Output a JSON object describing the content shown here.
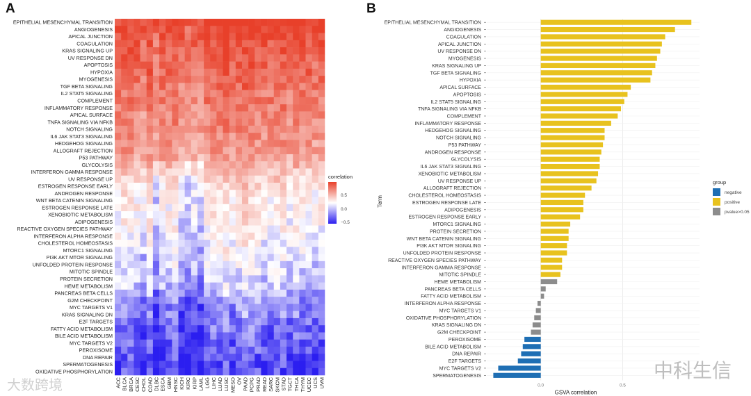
{
  "panels": {
    "a": "A",
    "b": "B"
  },
  "watermarks": [
    "大数跨境",
    "中科生信"
  ],
  "chart_data": [
    {
      "type": "heatmap",
      "title": "",
      "legend_title": "correlation",
      "legend_ticks": [
        0.5,
        0.0,
        -0.5
      ],
      "legend_tick_labels": [
        "0.5",
        "0.0",
        "−0.5"
      ],
      "color_low": "#2b1ef0",
      "color_mid": "#ffffff",
      "color_high": "#e8402a",
      "columns": [
        "ACC",
        "BLCA",
        "BRCA",
        "CESC",
        "CHOL",
        "COAD",
        "DLBC",
        "ESCA",
        "GBM",
        "HNSC",
        "KICH",
        "KIRC",
        "KIRP",
        "LAML",
        "LGG",
        "LIHC",
        "LUAD",
        "LUSC",
        "MESO",
        "OV",
        "PAAD",
        "PCPG",
        "PRAD",
        "READ",
        "SARC",
        "SKCM",
        "STAD",
        "TGCT",
        "THCA",
        "THYM",
        "UCEC",
        "UCS",
        "UVM"
      ],
      "column_offsets": [
        0.0,
        0.05,
        0.05,
        0.0,
        -0.1,
        0.05,
        -0.2,
        0.0,
        0.0,
        0.05,
        -0.15,
        -0.2,
        -0.1,
        -0.15,
        0.05,
        0.05,
        0.05,
        0.1,
        0.0,
        0.05,
        0.15,
        0.1,
        0.05,
        0.0,
        0.0,
        0.05,
        0.05,
        -0.05,
        0.05,
        0.0,
        0.0,
        -0.05,
        0.0
      ],
      "rows": [
        "EPITHELIAL MESENCHYMAL TRANSITION",
        "ANGIOGENESIS",
        "APICAL JUNCTION",
        "COAGULATION",
        "KRAS SIGNALING UP",
        "UV RESPONSE DN",
        "APOPTOSIS",
        "HYPOXIA",
        "MYOGENESIS",
        "TGF BETA SIGNALING",
        "IL2 STAT5 SIGNALING",
        "COMPLEMENT",
        "INFLAMMATORY RESPONSE",
        "APICAL SURFACE",
        "TNFA SIGNALING VIA NFKB",
        "NOTCH SIGNALING",
        "IL6 JAK STAT3 SIGNALING",
        "HEDGEHOG SIGNALING",
        "ALLOGRAFT REJECTION",
        "P53 PATHWAY",
        "GLYCOLYSIS",
        "INTERFERON GAMMA RESPONSE",
        "UV RESPONSE UP",
        "ESTROGEN RESPONSE EARLY",
        "ANDROGEN RESPONSE",
        "WNT BETA CATENIN SIGNALING",
        "ESTROGEN RESPONSE LATE",
        "XENOBIOTIC METABOLISM",
        "ADIPOGENESIS",
        "REACTIVE OXYGEN SPECIES PATHWAY",
        "INTERFERON ALPHA RESPONSE",
        "CHOLESTEROL HOMEOSTASIS",
        "MTORC1 SIGNALING",
        "PI3K AKT MTOR SIGNALING",
        "UNFOLDED PROTEIN RESPONSE",
        "MITOTIC SPINDLE",
        "PROTEIN SECRETION",
        "HEME METABOLISM",
        "PANCREAS BETA CELLS",
        "G2M CHECKPOINT",
        "MYC TARGETS V1",
        "KRAS SIGNALING DN",
        "E2F TARGETS",
        "FATTY ACID METABOLISM",
        "BILE ACID METABOLISM",
        "MYC TARGETS V2",
        "PEROXISOME",
        "DNA REPAIR",
        "SPERMATOGENESIS",
        "OXIDATIVE PHOSPHORYLATION"
      ],
      "row_means": [
        0.85,
        0.8,
        0.78,
        0.72,
        0.72,
        0.7,
        0.68,
        0.68,
        0.65,
        0.62,
        0.58,
        0.58,
        0.55,
        0.52,
        0.52,
        0.5,
        0.48,
        0.46,
        0.44,
        0.4,
        0.3,
        0.22,
        0.18,
        0.1,
        0.08,
        0.05,
        0.05,
        0.05,
        0.02,
        0.0,
        -0.02,
        -0.05,
        -0.05,
        -0.08,
        -0.1,
        -0.12,
        -0.15,
        -0.18,
        -0.22,
        -0.3,
        -0.32,
        -0.35,
        -0.38,
        -0.4,
        -0.42,
        -0.45,
        -0.45,
        -0.48,
        -0.5,
        -0.5
      ]
    },
    {
      "type": "bar",
      "orientation": "horizontal",
      "xlabel": "GSVA correlation",
      "ylabel": "Term",
      "xlim": [
        -0.33,
        0.97
      ],
      "x_ticks": [
        0.0,
        0.5
      ],
      "x_tick_labels": [
        "0.0",
        "0.5"
      ],
      "legend": {
        "title": "group",
        "placement": "right",
        "entries": [
          {
            "name": "negative",
            "color": "#1f6fb4"
          },
          {
            "name": "positive",
            "color": "#e8c21e"
          },
          {
            "name": "pvalue>0.05",
            "color": "#8c8c8c"
          }
        ]
      },
      "categories": [
        "EPITHELIAL MESENCHYMAL TRANSITION",
        "ANGIOGENESIS",
        "COAGULATION",
        "APICAL JUNCTION",
        "UV RESPONSE DN",
        "MYOGENESIS",
        "KRAS SIGNALING UP",
        "TGF BETA SIGNALING",
        "HYPOXIA",
        "APICAL SURFACE",
        "APOPTOSIS",
        "IL2 STAT5 SIGNALING",
        "TNFA SIGNALING VIA NFKB",
        "COMPLEMENT",
        "INFLAMMATORY RESPONSE",
        "HEDGEHOG SIGNALING",
        "NOTCH SIGNALING",
        "P53 PATHWAY",
        "ANDROGEN RESPONSE",
        "GLYCOLYSIS",
        "IL6 JAK STAT3 SIGNALING",
        "XENOBIOTIC METABOLISM",
        "UV RESPONSE UP",
        "ALLOGRAFT REJECTION",
        "CHOLESTEROL HOMEOSTASIS",
        "ESTROGEN RESPONSE LATE",
        "ADIPOGENESIS",
        "ESTROGEN RESPONSE EARLY",
        "MTORC1 SIGNALING",
        "PROTEIN SECRETION",
        "WNT BETA CATENIN SIGNALING",
        "PI3K AKT MTOR SIGNALING",
        "UNFOLDED PROTEIN RESPONSE",
        "REACTIVE OXYGEN SPECIES PATHWAY",
        "INTERFERON GAMMA RESPONSE",
        "MITOTIC SPINDLE",
        "HEME METABOLISM",
        "PANCREAS BETA CELLS",
        "FATTY ACID METABOLISM",
        "INTERFERON ALPHA RESPONSE",
        "MYC TARGETS V1",
        "OXIDATIVE PHOSPHORYLATION",
        "KRAS SIGNALING DN",
        "G2M CHECKPOINT",
        "PEROXISOME",
        "BILE ACID METABOLISM",
        "DNA REPAIR",
        "E2F TARGETS",
        "MYC TARGETS V2",
        "SPERMATOGENESIS"
      ],
      "values": [
        0.92,
        0.82,
        0.76,
        0.74,
        0.73,
        0.71,
        0.7,
        0.68,
        0.67,
        0.55,
        0.53,
        0.51,
        0.49,
        0.47,
        0.43,
        0.39,
        0.39,
        0.38,
        0.37,
        0.36,
        0.36,
        0.35,
        0.34,
        0.31,
        0.27,
        0.26,
        0.26,
        0.24,
        0.18,
        0.17,
        0.17,
        0.16,
        0.16,
        0.13,
        0.13,
        0.12,
        0.1,
        0.03,
        0.02,
        -0.02,
        -0.03,
        -0.04,
        -0.05,
        -0.06,
        -0.1,
        -0.11,
        -0.12,
        -0.14,
        -0.26,
        -0.29
      ],
      "groups": [
        "positive",
        "positive",
        "positive",
        "positive",
        "positive",
        "positive",
        "positive",
        "positive",
        "positive",
        "positive",
        "positive",
        "positive",
        "positive",
        "positive",
        "positive",
        "positive",
        "positive",
        "positive",
        "positive",
        "positive",
        "positive",
        "positive",
        "positive",
        "positive",
        "positive",
        "positive",
        "positive",
        "positive",
        "positive",
        "positive",
        "positive",
        "positive",
        "positive",
        "positive",
        "positive",
        "positive",
        "pvalue>0.05",
        "pvalue>0.05",
        "pvalue>0.05",
        "pvalue>0.05",
        "pvalue>0.05",
        "pvalue>0.05",
        "pvalue>0.05",
        "pvalue>0.05",
        "negative",
        "negative",
        "negative",
        "negative",
        "negative",
        "negative"
      ]
    }
  ]
}
